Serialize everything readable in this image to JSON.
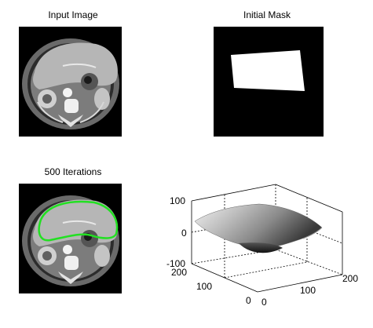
{
  "figure": {
    "panels": [
      {
        "title": "Input Image"
      },
      {
        "title": "Initial Mask"
      },
      {
        "title": "500 Iterations"
      },
      {
        "title": ""
      }
    ]
  },
  "colors": {
    "background": "#ffffff",
    "image_background": "#000000",
    "mask": "#ffffff",
    "contour": "#22e022"
  },
  "surface_plot": {
    "z_ticks": [
      "100",
      "0",
      "-100"
    ],
    "x_ticks": [
      "0",
      "100",
      "200"
    ],
    "y_ticks": [
      "0",
      "100",
      "200"
    ],
    "zlim": [
      -100,
      100
    ],
    "xlim": [
      0,
      200
    ],
    "ylim": [
      0,
      200
    ],
    "grid": true,
    "colormap": "gray"
  }
}
